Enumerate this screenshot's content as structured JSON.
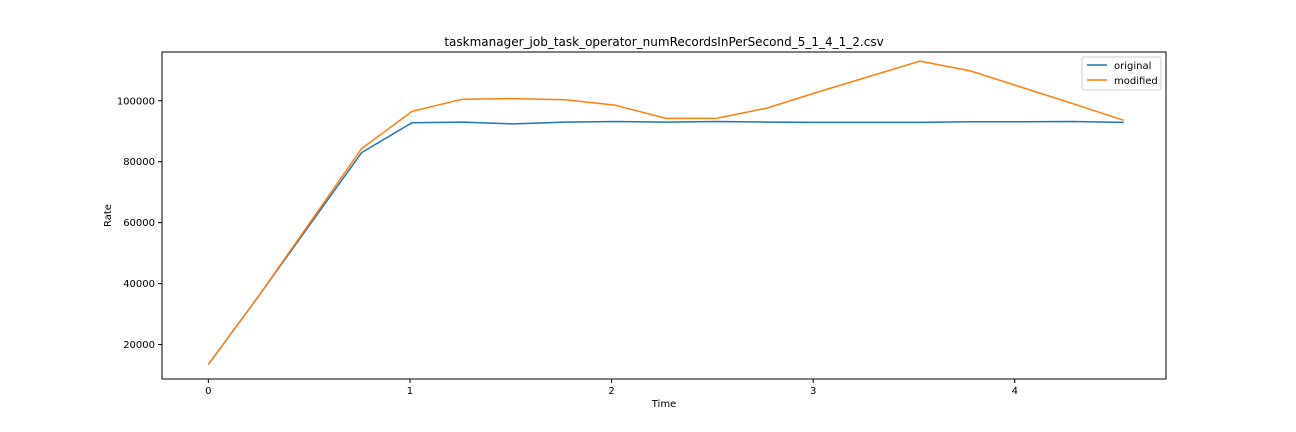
{
  "chart_data": {
    "type": "line",
    "title": "taskmanager_job_task_operator_numRecordsInPerSecond_5_1_4_1_2.csv",
    "xlabel": "Time",
    "ylabel": "Rate",
    "xlim": [
      -0.23,
      4.75
    ],
    "ylim": [
      8700,
      116000
    ],
    "xticks": [
      0,
      1,
      2,
      3,
      4
    ],
    "xtick_labels": [
      "0",
      "1",
      "2",
      "3",
      "4"
    ],
    "yticks": [
      20000,
      40000,
      60000,
      80000,
      100000
    ],
    "ytick_labels": [
      "20000",
      "40000",
      "60000",
      "80000",
      "100000"
    ],
    "grid": false,
    "legend_position": "top-right",
    "series": [
      {
        "name": "original",
        "color": "#1f77b4",
        "x": [
          0,
          0.25,
          0.76,
          1.01,
          1.26,
          1.51,
          1.77,
          2.02,
          2.27,
          2.52,
          2.77,
          3.03,
          3.28,
          3.53,
          3.78,
          4.03,
          4.29,
          4.54
        ],
        "y": [
          13500,
          36000,
          83000,
          92800,
          93000,
          92400,
          93000,
          93200,
          93000,
          93200,
          93000,
          92900,
          92900,
          92900,
          93100,
          93100,
          93200,
          92900
        ]
      },
      {
        "name": "modified",
        "color": "#ff7f0e",
        "x": [
          0,
          0.25,
          0.76,
          1.01,
          1.26,
          1.51,
          1.77,
          2.02,
          2.27,
          2.52,
          2.77,
          3.03,
          3.28,
          3.53,
          3.78,
          4.03,
          4.29,
          4.54
        ],
        "y": [
          13500,
          36000,
          84300,
          96500,
          100500,
          100700,
          100300,
          98500,
          94200,
          94200,
          97600,
          103000,
          108000,
          113000,
          109800,
          104500,
          99000,
          93600
        ]
      }
    ]
  }
}
